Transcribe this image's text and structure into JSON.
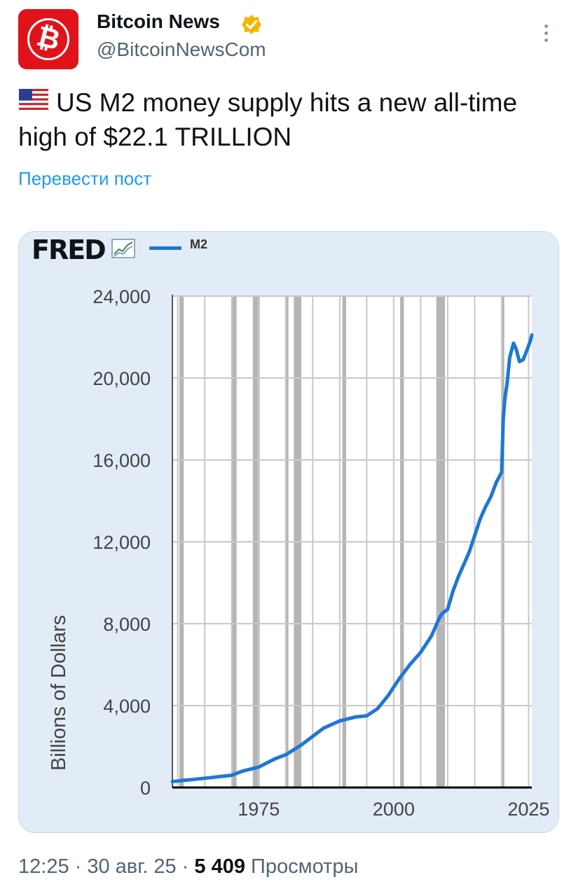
{
  "tweet": {
    "author": "Bitcoin News",
    "handle": "@BitcoinNewsCom",
    "text_line1": "US M2 money supply hits a new all-time",
    "text_line2": "high of $22.1 TRILLION",
    "translate_label": "Перевести пост",
    "time": "12:25",
    "date": "30 авг. 25",
    "views_count": "5 409",
    "views_label": "Просмотры",
    "separator": " · "
  },
  "icons": {
    "avatar": "bitcoin-logo",
    "verified": "gold-verified-badge-icon",
    "menu": "more-vertical-icon",
    "flag": "us-flag-icon"
  },
  "colors": {
    "accent": "#1d9bf0",
    "verified": "#f5b700",
    "series": "#1f77d4",
    "recession": "#b5b5b5",
    "card_bg": "#e1ecf6"
  },
  "chart_data": {
    "type": "line",
    "source_logo": "FRED",
    "legend": "M2",
    "ylabel": "Billions of Dollars",
    "ylim": [
      0,
      24000
    ],
    "yticks": [
      0,
      4000,
      8000,
      12000,
      16000,
      20000,
      24000
    ],
    "ytick_labels": [
      "0",
      "4,000",
      "8,000",
      "12,000",
      "16,000",
      "20,000",
      "24,000"
    ],
    "xlim": [
      1959,
      2025.6
    ],
    "xticks": [
      1975,
      2000,
      2025
    ],
    "grid": true,
    "recessions": [
      [
        1960.3,
        1961.1
      ],
      [
        1969.9,
        1970.9
      ],
      [
        1973.9,
        1975.2
      ],
      [
        1980.0,
        1980.5
      ],
      [
        1981.5,
        1982.9
      ],
      [
        1990.5,
        1991.2
      ],
      [
        2001.2,
        2001.9
      ],
      [
        2007.9,
        2009.5
      ],
      [
        2020.1,
        2020.4
      ]
    ],
    "series": [
      {
        "name": "M2",
        "x": [
          1959,
          1965,
          1970,
          1972,
          1975,
          1978,
          1980,
          1983,
          1985,
          1987,
          1990,
          1993,
          1995,
          1997,
          1999,
          2001,
          2003,
          2005,
          2007,
          2008.5,
          2009,
          2010,
          2011,
          2012,
          2013,
          2014,
          2015,
          2016,
          2017,
          2018,
          2019,
          2020,
          2020.3,
          2020.6,
          2021,
          2021.5,
          2022.2,
          2022.7,
          2023.3,
          2024,
          2024.6,
          2025.3,
          2025.6
        ],
        "y": [
          290,
          450,
          600,
          800,
          1000,
          1400,
          1600,
          2100,
          2500,
          2900,
          3250,
          3450,
          3500,
          3850,
          4500,
          5300,
          6000,
          6600,
          7400,
          8300,
          8500,
          8700,
          9600,
          10300,
          10900,
          11500,
          12300,
          13100,
          13700,
          14200,
          14900,
          15400,
          18000,
          19000,
          19700,
          21000,
          21700,
          21400,
          20800,
          20900,
          21300,
          21800,
          22100
        ]
      }
    ]
  }
}
